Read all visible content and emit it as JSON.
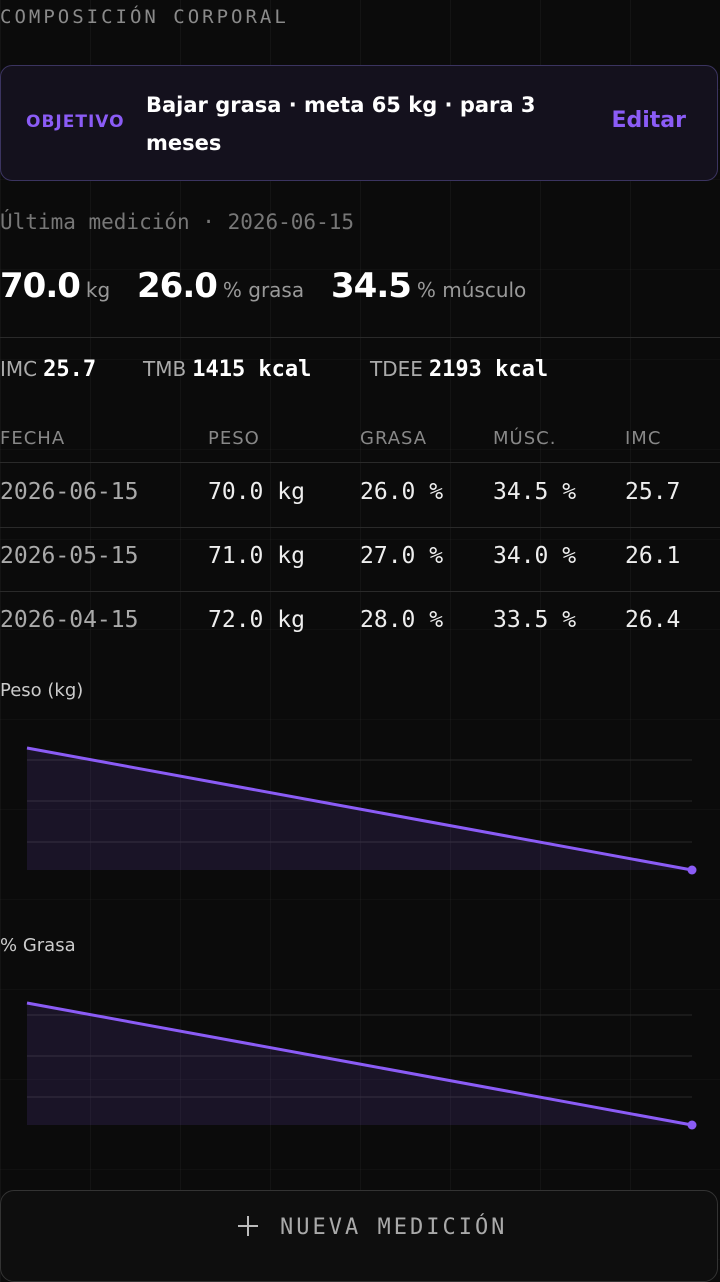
{
  "header": {
    "title": "COMPOSICIÓN CORPORAL"
  },
  "goal": {
    "label": "OBJETIVO",
    "text": "Bajar grasa · meta 65 kg · para 3 meses",
    "action": "Editar"
  },
  "latest": {
    "label": "Última medición · 2026-06-15",
    "stats": [
      {
        "value": "70.0",
        "unit": "kg"
      },
      {
        "value": "26.0",
        "unit": "% grasa"
      },
      {
        "value": "34.5",
        "unit": "% músculo"
      }
    ],
    "metrics": [
      {
        "label": "IMC",
        "value": "25.7"
      },
      {
        "label": "TMB",
        "value": "1415 kcal"
      },
      {
        "label": "TDEE",
        "value": "2193 kcal"
      }
    ]
  },
  "table": {
    "headers": [
      "FECHA",
      "PESO",
      "GRASA",
      "MÚSC.",
      "IMC"
    ],
    "rows": [
      [
        "2026-06-15",
        "70.0 kg",
        "26.0 %",
        "34.5 %",
        "25.7"
      ],
      [
        "2026-05-15",
        "71.0 kg",
        "27.0 %",
        "34.0 %",
        "26.1"
      ],
      [
        "2026-04-15",
        "72.0 kg",
        "28.0 %",
        "33.5 %",
        "26.4"
      ]
    ]
  },
  "charts": [
    {
      "type": "line",
      "title": "Peso (kg)",
      "values": [
        72,
        71,
        70
      ],
      "color": "#8b5cf6"
    },
    {
      "type": "line",
      "title": "% Grasa",
      "values": [
        28,
        27,
        26
      ],
      "color": "#8b5cf6"
    }
  ],
  "button": {
    "label": "NUEVA MEDICIÓN"
  }
}
